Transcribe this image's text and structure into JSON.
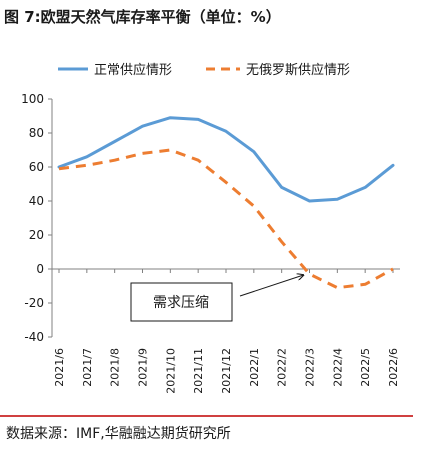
{
  "title": "图 7:欧盟天然气库存率平衡（单位：%）",
  "source": "数据来源：IMF,华融融达期货研究所",
  "colors": {
    "normal": "#5b9bd5",
    "no_russia": "#ed7d31",
    "axis": "#808080",
    "text": "#1a1a1a",
    "rule": "#c00000"
  },
  "chart_data": {
    "type": "line",
    "x": [
      "2021/6",
      "2021/7",
      "2021/8",
      "2021/9",
      "2021/10",
      "2021/11",
      "2021/12",
      "2022/1",
      "2022/2",
      "2022/3",
      "2022/4",
      "2022/5",
      "2022/6"
    ],
    "ylim": [
      -40,
      100
    ],
    "yticks": [
      -40,
      -20,
      0,
      20,
      40,
      60,
      80,
      100
    ],
    "grid": false,
    "legend_position": "top",
    "series": [
      {
        "name": "正常供应情形",
        "style": "solid",
        "values": [
          60,
          66,
          75,
          84,
          89,
          88,
          81,
          69,
          48,
          40,
          41,
          48,
          61
        ]
      },
      {
        "name": "无俄罗斯供应情形",
        "style": "dashed",
        "values": [
          59,
          61,
          64,
          68,
          70,
          64,
          51,
          37,
          16,
          -3,
          -11,
          -9,
          0
        ]
      }
    ],
    "annotation": {
      "text": "需求压缩",
      "points_to_x": "2022/3",
      "points_to_y": 0
    }
  }
}
